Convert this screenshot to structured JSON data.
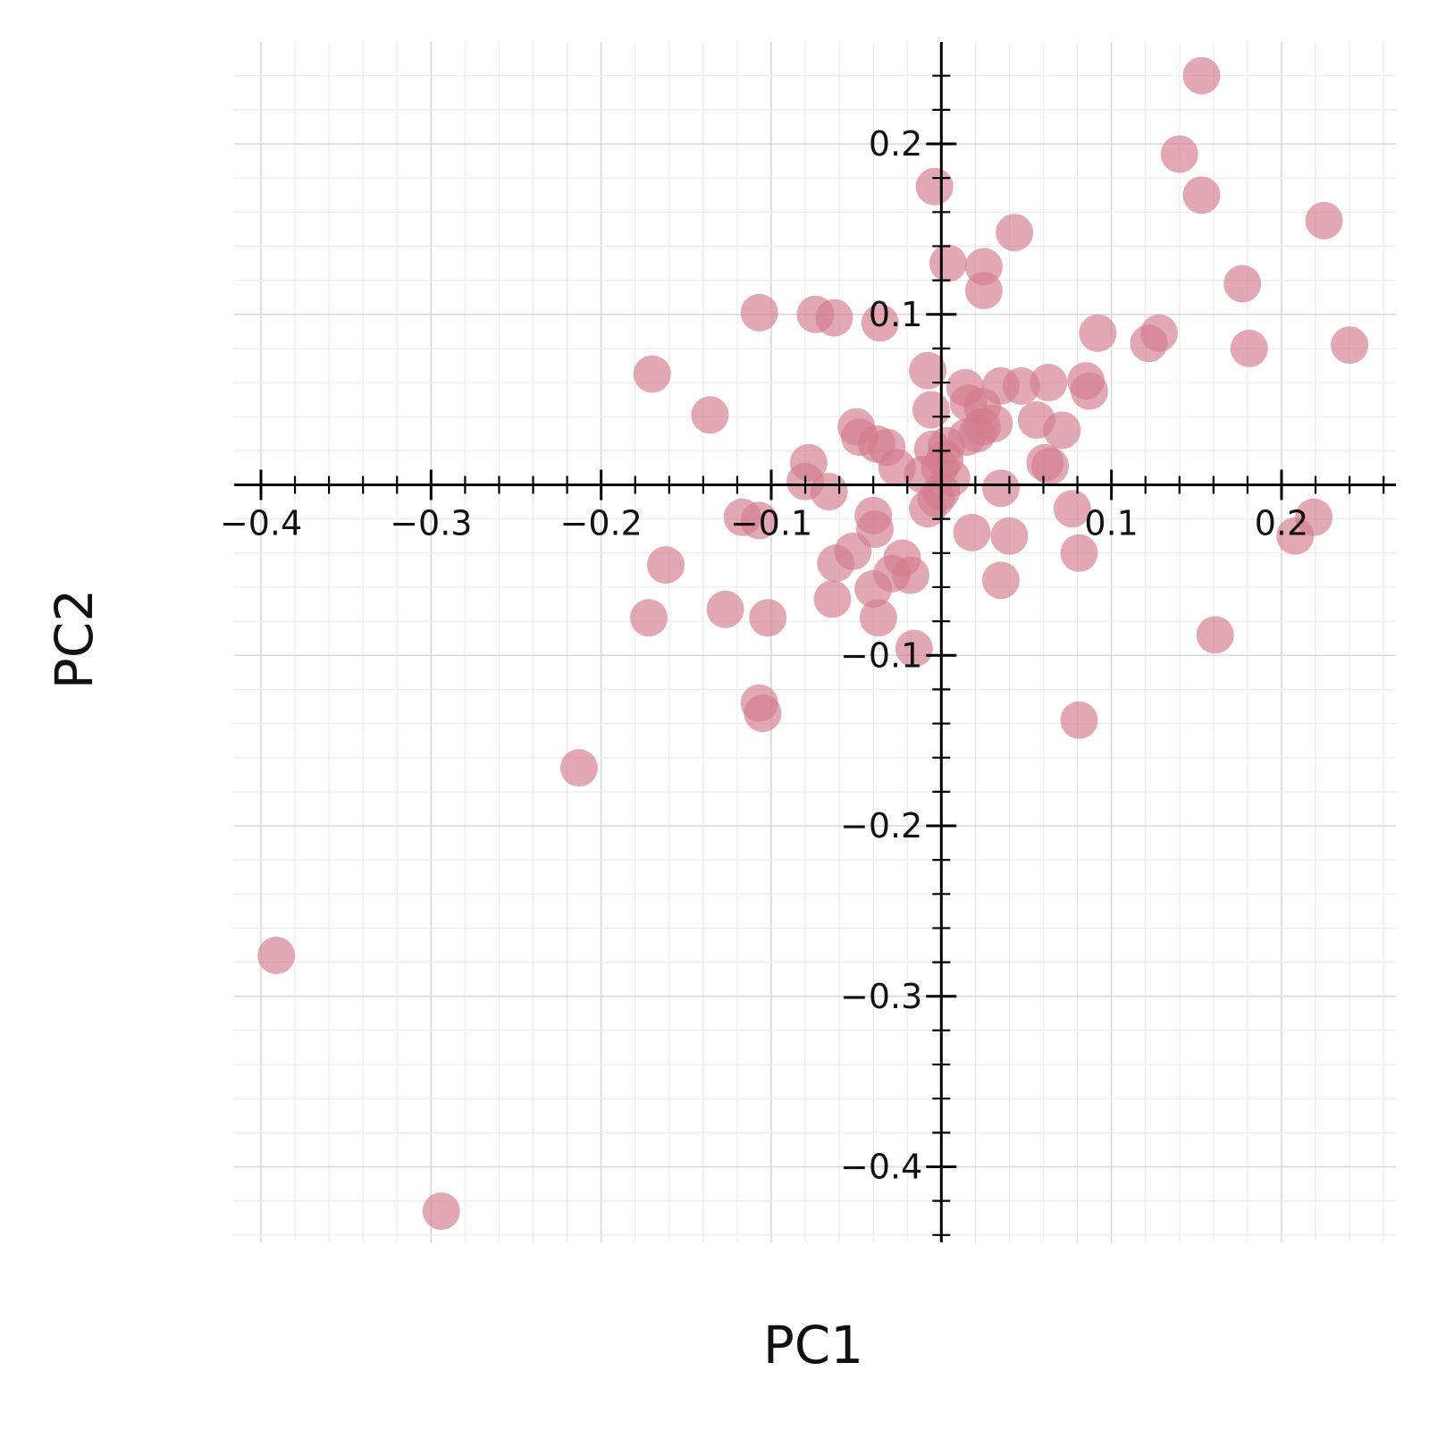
{
  "chart_data": {
    "type": "scatter",
    "title": "",
    "xlabel": "PC1",
    "ylabel": "PC2",
    "xlim": [
      -0.415,
      0.268
    ],
    "ylim": [
      -0.445,
      0.259
    ],
    "grid": true,
    "x_ticks": [
      -0.4,
      -0.3,
      -0.2,
      -0.1,
      0.1,
      0.2
    ],
    "x_tick_labels": [
      "−0.4",
      "−0.3",
      "−0.2",
      "−0.1",
      "0.1",
      "0.2"
    ],
    "y_ticks": [
      0.2,
      0.1,
      -0.1,
      -0.2,
      -0.3,
      -0.4
    ],
    "y_tick_labels": [
      "0.2",
      "0.1",
      "−0.1",
      "−0.2",
      "−0.3",
      "−0.4"
    ],
    "marker_color": "#d27b8c",
    "marker_opacity": 0.65,
    "points": [
      [
        0.153,
        0.24
      ],
      [
        0.14,
        0.194
      ],
      [
        0.153,
        0.17
      ],
      [
        0.225,
        0.155
      ],
      [
        -0.004,
        0.175
      ],
      [
        0.043,
        0.148
      ],
      [
        0.025,
        0.128
      ],
      [
        0.004,
        0.13
      ],
      [
        0.025,
        0.114
      ],
      [
        0.177,
        0.118
      ],
      [
        -0.107,
        0.101
      ],
      [
        -0.074,
        0.1
      ],
      [
        -0.063,
        0.098
      ],
      [
        -0.036,
        0.095
      ],
      [
        0.092,
        0.089
      ],
      [
        0.128,
        0.089
      ],
      [
        0.122,
        0.083
      ],
      [
        0.181,
        0.08
      ],
      [
        0.24,
        0.082
      ],
      [
        -0.17,
        0.065
      ],
      [
        -0.008,
        0.067
      ],
      [
        0.014,
        0.057
      ],
      [
        0.035,
        0.058
      ],
      [
        0.047,
        0.058
      ],
      [
        0.063,
        0.06
      ],
      [
        0.085,
        0.061
      ],
      [
        0.087,
        0.055
      ],
      [
        -0.006,
        0.044
      ],
      [
        0.016,
        0.048
      ],
      [
        0.024,
        0.046
      ],
      [
        -0.136,
        0.041
      ],
      [
        -0.05,
        0.034
      ],
      [
        0.056,
        0.038
      ],
      [
        0.071,
        0.032
      ],
      [
        0.031,
        0.036
      ],
      [
        0.024,
        0.034
      ],
      [
        -0.048,
        0.028
      ],
      [
        -0.038,
        0.024
      ],
      [
        -0.032,
        0.022
      ],
      [
        0.015,
        0.028
      ],
      [
        0.021,
        0.03
      ],
      [
        0.003,
        0.023
      ],
      [
        -0.026,
        0.01
      ],
      [
        -0.078,
        0.013
      ],
      [
        -0.005,
        0.021
      ],
      [
        0.002,
        0.015
      ],
      [
        -0.011,
        0.006
      ],
      [
        0.006,
        0.004
      ],
      [
        -0.001,
        0.01
      ],
      [
        0.061,
        0.013
      ],
      [
        0.064,
        0.011
      ],
      [
        -0.08,
        0.002
      ],
      [
        -0.066,
        -0.004
      ],
      [
        0.035,
        -0.002
      ],
      [
        0.0,
        -0.004
      ],
      [
        -0.003,
        -0.008
      ],
      [
        -0.117,
        -0.019
      ],
      [
        -0.107,
        -0.021
      ],
      [
        -0.04,
        -0.018
      ],
      [
        -0.008,
        -0.014
      ],
      [
        0.077,
        -0.014
      ],
      [
        0.219,
        -0.019
      ],
      [
        0.208,
        -0.03
      ],
      [
        -0.039,
        -0.026
      ],
      [
        0.018,
        -0.028
      ],
      [
        0.04,
        -0.03
      ],
      [
        -0.052,
        -0.039
      ],
      [
        -0.062,
        -0.046
      ],
      [
        -0.162,
        -0.047
      ],
      [
        -0.023,
        -0.043
      ],
      [
        0.081,
        -0.04
      ],
      [
        -0.018,
        -0.053
      ],
      [
        -0.029,
        -0.052
      ],
      [
        -0.04,
        -0.061
      ],
      [
        0.035,
        -0.056
      ],
      [
        -0.064,
        -0.067
      ],
      [
        -0.127,
        -0.073
      ],
      [
        -0.102,
        -0.078
      ],
      [
        -0.172,
        -0.078
      ],
      [
        -0.037,
        -0.078
      ],
      [
        -0.016,
        -0.096
      ],
      [
        0.161,
        -0.088
      ],
      [
        -0.107,
        -0.128
      ],
      [
        -0.105,
        -0.134
      ],
      [
        0.081,
        -0.138
      ],
      [
        -0.213,
        -0.166
      ],
      [
        -0.391,
        -0.276
      ],
      [
        -0.294,
        -0.426
      ]
    ]
  }
}
